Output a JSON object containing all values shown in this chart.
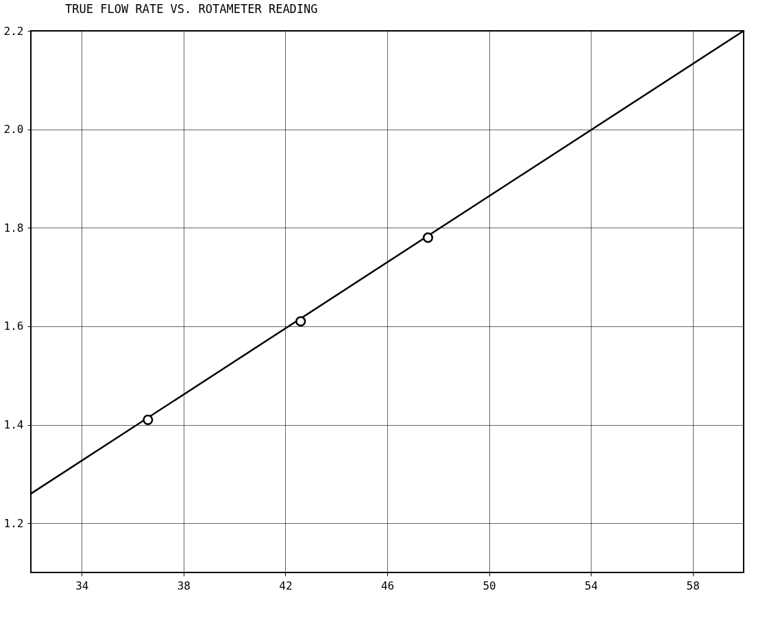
{
  "chart_data": {
    "type": "scatter",
    "title": "TRUE FLOW RATE VS. ROTAMETER READING",
    "xlim": [
      32,
      60
    ],
    "ylim": [
      1.1,
      2.2
    ],
    "xticks": [
      34,
      38,
      42,
      46,
      50,
      54,
      58
    ],
    "yticks": [
      1.2,
      1.4,
      1.6,
      1.8,
      {
        "value": 2,
        "label": "2.0"
      },
      2.2
    ],
    "grid": true,
    "series": [
      {
        "type": "line",
        "color": "#000000",
        "marker": "none",
        "line_style": "solid",
        "x": [
          32,
          60
        ],
        "values": [
          1.26,
          2.2
        ]
      },
      {
        "color": "#000000",
        "marker": "circle",
        "x": [
          36.6,
          42.6,
          47.6
        ],
        "values": [
          1.41,
          1.61,
          1.78
        ]
      }
    ]
  }
}
